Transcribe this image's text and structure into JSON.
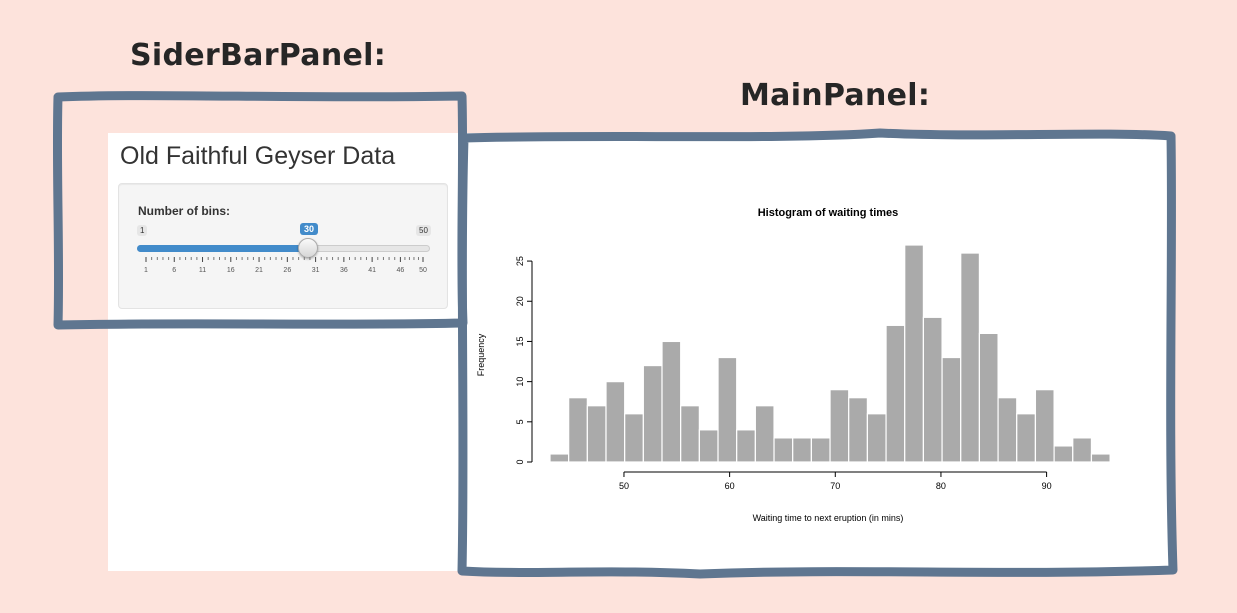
{
  "annotations": {
    "sidebar_label": "SiderBarPanel:",
    "main_label": "MainPanel:"
  },
  "app": {
    "title": "Old Faithful Geyser Data"
  },
  "slider": {
    "label": "Number of bins:",
    "min": 1,
    "max": 50,
    "value": 30,
    "min_label": "1",
    "max_label": "50",
    "value_label": "30",
    "tick_labels": [
      "1",
      "6",
      "11",
      "16",
      "21",
      "26",
      "31",
      "36",
      "41",
      "46",
      "50"
    ],
    "accent_color": "#428bca"
  },
  "colors": {
    "background": "#fde3dc",
    "frame": "#5f7690",
    "bar_fill": "#aaaaaa"
  },
  "chart_data": {
    "type": "bar",
    "title": "Histogram of waiting times",
    "xlabel": "Waiting time to next eruption (in mins)",
    "ylabel": "Frequency",
    "x_start": 43,
    "bin_width": 1.767,
    "values": [
      1,
      8,
      7,
      10,
      6,
      12,
      15,
      7,
      4,
      13,
      4,
      7,
      3,
      3,
      3,
      9,
      8,
      6,
      17,
      27,
      18,
      13,
      26,
      16,
      8,
      6,
      9,
      2,
      3,
      1
    ],
    "xlim": [
      43,
      96
    ],
    "ylim": [
      0,
      27
    ],
    "xticks": [
      50,
      60,
      70,
      80,
      90
    ],
    "yticks": [
      0,
      5,
      10,
      15,
      20,
      25
    ],
    "grid": false
  }
}
